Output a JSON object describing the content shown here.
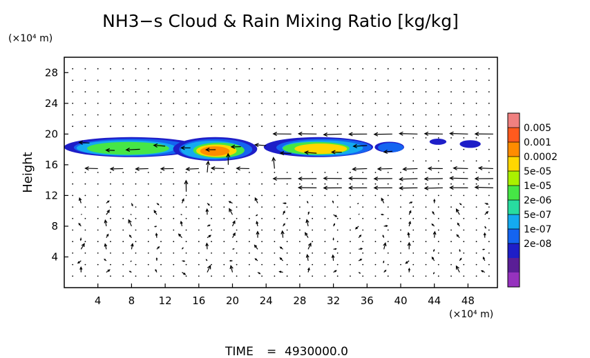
{
  "chart_data": {
    "type": "heatmap",
    "title": "NH3−s Cloud & Rain Mixing Ratio [kg/kg]",
    "xlabel": "",
    "ylabel": "Height",
    "x_unit": "(×10⁴ m)",
    "y_unit": "(×10⁴ m)",
    "xlim": [
      0,
      51.5
    ],
    "ylim": [
      0,
      30
    ],
    "xticks": [
      4,
      8,
      12,
      16,
      20,
      24,
      28,
      32,
      36,
      40,
      44,
      48
    ],
    "yticks": [
      4,
      8,
      12,
      16,
      20,
      24,
      28
    ],
    "colorbar": {
      "labels": [
        "0.005",
        "0.001",
        "0.0002",
        "5e-05",
        "1e-05",
        "2e-06",
        "5e-07",
        "1e-07",
        "2e-08"
      ],
      "colors": [
        "#f08080",
        "#ff5a1e",
        "#ff8c00",
        "#ffd700",
        "#aaf000",
        "#46e646",
        "#28dca0",
        "#14aaf0",
        "#1464f0",
        "#1e1ec8",
        "#5a1e96",
        "#9632be"
      ]
    },
    "field_bands": [
      {
        "x": [
          0,
          16
        ],
        "y": [
          17.0,
          19.6
        ],
        "peak": "1e-05"
      },
      {
        "x": [
          13,
          23
        ],
        "y": [
          16.5,
          19.6
        ],
        "peak": "0.0002"
      },
      {
        "x": [
          24,
          37
        ],
        "y": [
          17.0,
          19.6
        ],
        "peak": "5e-05"
      },
      {
        "x": [
          37,
          40.5
        ],
        "y": [
          17.6,
          19.0
        ],
        "peak": "5e-07"
      },
      {
        "x": [
          43.5,
          45.5
        ],
        "y": [
          18.6,
          19.4
        ],
        "peak": "1e-07"
      },
      {
        "x": [
          47,
          49.5
        ],
        "y": [
          18.2,
          19.2
        ],
        "peak": "1e-07"
      }
    ],
    "wind_jets": [
      {
        "y": 20.0,
        "x": [
          23,
          51
        ],
        "u": -1.0
      },
      {
        "y": 15.5,
        "x": [
          0,
          22
        ],
        "u": -0.7
      },
      {
        "y": 14.2,
        "x": [
          24,
          51
        ],
        "u": -1.0
      },
      {
        "y": 13.0,
        "x": [
          26,
          51
        ],
        "u": -1.0
      },
      {
        "y": 15.5,
        "x": [
          34,
          51
        ],
        "u": -0.8
      }
    ]
  },
  "time_label": "TIME",
  "time_equals": "=",
  "time_value": "4930000.0"
}
